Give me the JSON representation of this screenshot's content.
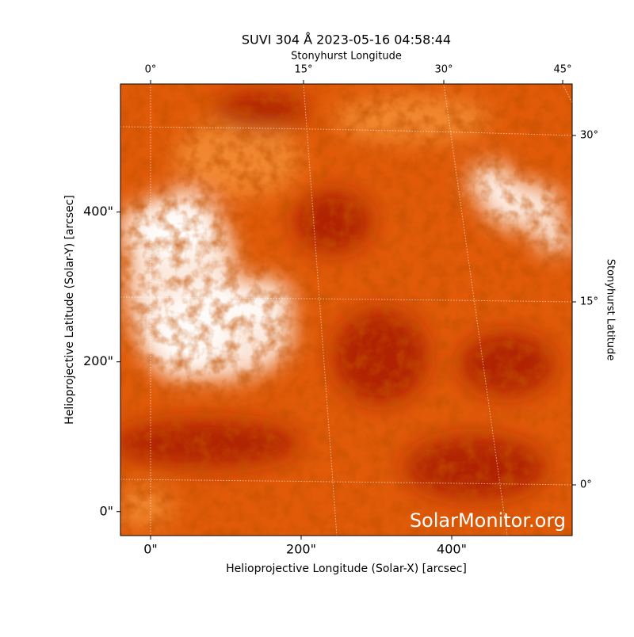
{
  "chart_data": {
    "type": "image",
    "title": "SUVI 304 Å 2023-05-16 04:58:44",
    "x_label": "Helioprojective Longitude (Solar-X) [arcsec]",
    "y_label": "Helioprojective Latitude (Solar-Y) [arcsec]",
    "top_label": "Stonyhurst Longitude",
    "right_label": "Stonyhurst Latitude",
    "top_ticks": [
      "0°",
      "15°",
      "30°",
      "45°"
    ],
    "right_ticks": [
      "30°",
      "15°",
      "0°"
    ],
    "watermark": "SolarMonitor.org",
    "xlim": [
      -40,
      560
    ],
    "ylim": [
      -32,
      571
    ],
    "xticks": [
      {
        "value": 0,
        "label": "0\""
      },
      {
        "value": 200,
        "label": "200\""
      },
      {
        "value": 400,
        "label": "400\""
      }
    ],
    "yticks": [
      {
        "value": 0,
        "label": "0\""
      },
      {
        "value": 200,
        "label": "200\""
      },
      {
        "value": 400,
        "label": "400\""
      }
    ],
    "colormap": [
      "#a81800",
      "#e05a08",
      "#ffffff"
    ]
  }
}
